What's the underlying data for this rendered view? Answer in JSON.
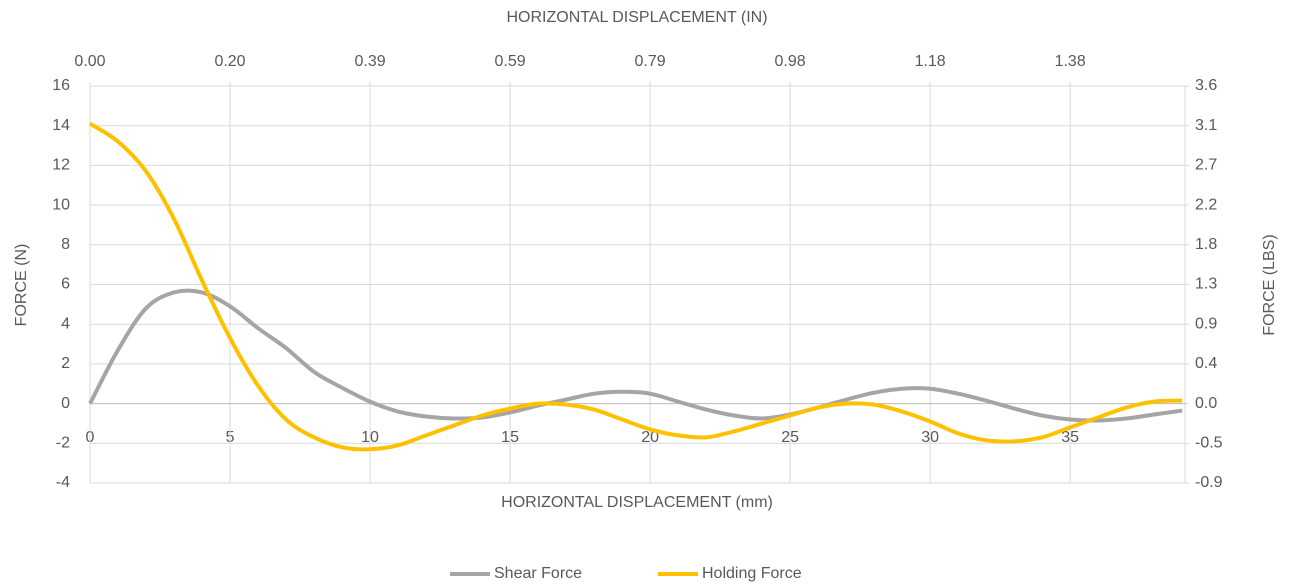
{
  "chart_data": {
    "type": "line",
    "xlabel": "HORIZONTAL DISPLACEMENT (mm)",
    "x2label": "HORIZONTAL DISPLACEMENT (IN)",
    "ylabel": "FORCE (N)",
    "y2label": "FORCE (LBS)",
    "x": [
      0,
      1,
      2,
      3,
      4,
      5,
      6,
      7,
      8,
      9,
      10,
      11,
      12,
      13,
      14,
      15,
      16,
      17,
      18,
      19,
      20,
      21,
      22,
      23,
      24,
      25,
      26,
      27,
      28,
      29,
      30,
      31,
      32,
      33,
      34,
      35,
      36,
      37,
      38,
      39
    ],
    "series": [
      {
        "name": "Shear Force",
        "color": "#a5a5a5",
        "values": [
          0,
          2.7,
          4.8,
          5.6,
          5.6,
          4.9,
          3.8,
          2.8,
          1.6,
          0.8,
          0.1,
          -0.4,
          -0.65,
          -0.75,
          -0.7,
          -0.45,
          -0.1,
          0.2,
          0.5,
          0.6,
          0.5,
          0.1,
          -0.3,
          -0.6,
          -0.75,
          -0.55,
          -0.2,
          0.2,
          0.55,
          0.75,
          0.75,
          0.5,
          0.15,
          -0.25,
          -0.6,
          -0.8,
          -0.85,
          -0.75,
          -0.55,
          -0.35
        ]
      },
      {
        "name": "Holding Force",
        "color": "#ffc000",
        "values": [
          14.1,
          13.2,
          11.7,
          9.3,
          6.2,
          3.3,
          0.9,
          -0.8,
          -1.7,
          -2.2,
          -2.3,
          -2.1,
          -1.6,
          -1.1,
          -0.6,
          -0.25,
          0.0,
          -0.05,
          -0.3,
          -0.8,
          -1.3,
          -1.6,
          -1.7,
          -1.4,
          -1.0,
          -0.6,
          -0.2,
          0.0,
          -0.05,
          -0.4,
          -0.9,
          -1.5,
          -1.85,
          -1.9,
          -1.7,
          -1.2,
          -0.7,
          -0.2,
          0.1,
          0.15
        ]
      }
    ],
    "xlim": [
      0,
      39.1
    ],
    "xticks": [
      0,
      5,
      10,
      15,
      20,
      25,
      30,
      35
    ],
    "x2lim": [
      0,
      1.5394
    ],
    "x2ticks": [
      {
        "value": 0,
        "label": "0.00"
      },
      {
        "value": 0.19685,
        "label": "0.20"
      },
      {
        "value": 0.3937,
        "label": "0.39"
      },
      {
        "value": 0.59055,
        "label": "0.59"
      },
      {
        "value": 0.7874,
        "label": "0.79"
      },
      {
        "value": 0.98425,
        "label": "0.98"
      },
      {
        "value": 1.1811,
        "label": "1.18"
      },
      {
        "value": 1.37795,
        "label": "1.38"
      }
    ],
    "ylim": [
      -4,
      16
    ],
    "yticks": [
      -4,
      -2,
      0,
      2,
      4,
      6,
      8,
      10,
      12,
      14,
      16
    ],
    "y2lim": [
      -0.8992,
      3.5969
    ],
    "y2ticks": [
      {
        "value": -0.8992,
        "label": "-0.9"
      },
      {
        "value": -0.45,
        "label": "-0.5"
      },
      {
        "value": 0,
        "label": "0.0"
      },
      {
        "value": 0.4496,
        "label": "0.4"
      },
      {
        "value": 0.8992,
        "label": "0.9"
      },
      {
        "value": 1.3489,
        "label": "1.3"
      },
      {
        "value": 1.7985,
        "label": "1.8"
      },
      {
        "value": 2.2481,
        "label": "2.2"
      },
      {
        "value": 2.6977,
        "label": "2.7"
      },
      {
        "value": 3.1473,
        "label": "3.1"
      },
      {
        "value": 3.5969,
        "label": "3.6"
      }
    ],
    "grid": true,
    "legend": "bottom"
  }
}
